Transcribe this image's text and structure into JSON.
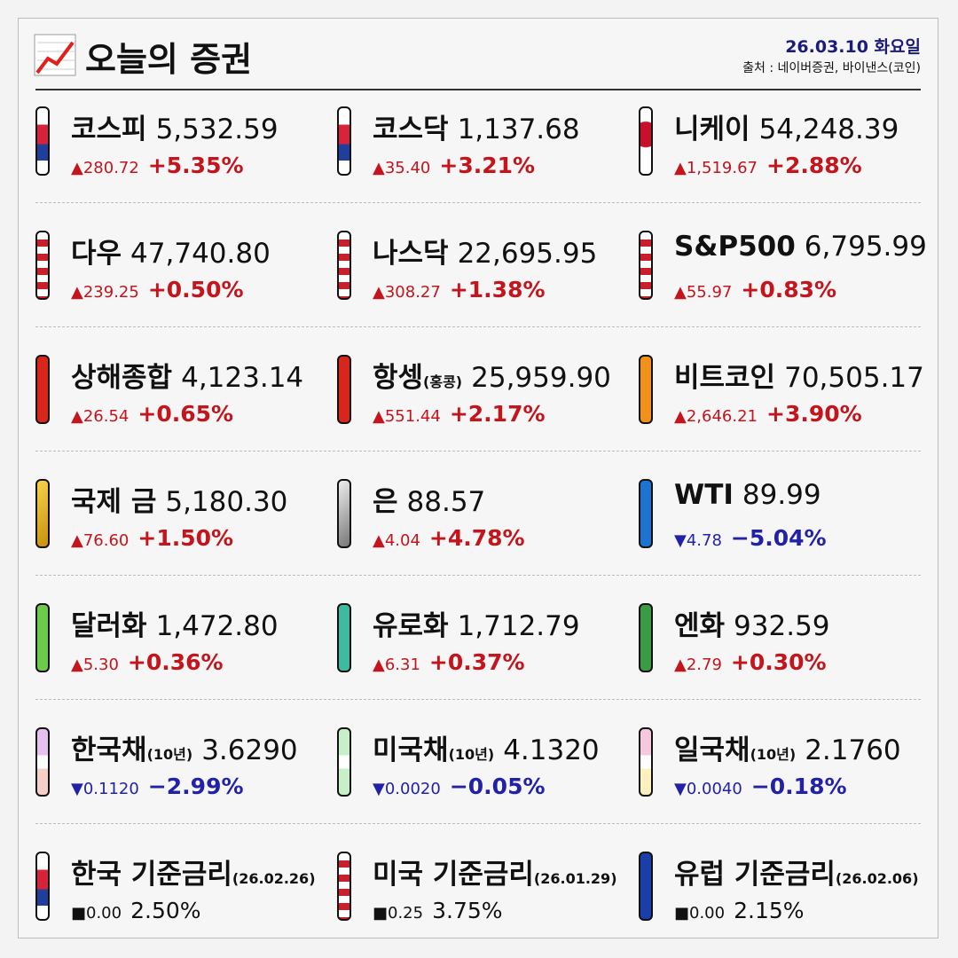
{
  "header": {
    "title": "오늘의 증권",
    "date": "26.03.10 화요일",
    "source": "출처 : 네이버증권, 바이낸스(코인)"
  },
  "items": [
    {
      "name": "코스피",
      "value": "5,532.59",
      "change": "▲280.72",
      "percent": "+5.35%"
    },
    {
      "name": "코스닥",
      "value": "1,137.68",
      "change": "▲35.40",
      "percent": "+3.21%"
    },
    {
      "name": "니케이",
      "value": "54,248.39",
      "change": "▲1,519.67",
      "percent": "+2.88%"
    },
    {
      "name": "다우",
      "value": "47,740.80",
      "change": "▲239.25",
      "percent": "+0.50%"
    },
    {
      "name": "나스닥",
      "value": "22,695.95",
      "change": "▲308.27",
      "percent": "+1.38%"
    },
    {
      "name": "S&P500",
      "value": "6,795.99",
      "change": "▲55.97",
      "percent": "+0.83%"
    },
    {
      "name": "상해종합",
      "value": "4,123.14",
      "change": "▲26.54",
      "percent": "+0.65%"
    },
    {
      "name": "항셍",
      "sub": "(홍콩)",
      "value": "25,959.90",
      "change": "▲551.44",
      "percent": "+2.17%"
    },
    {
      "name": "비트코인",
      "value": "70,505.17",
      "change": "▲2,646.21",
      "percent": "+3.90%"
    },
    {
      "name": "국제 금",
      "value": "5,180.30",
      "change": "▲76.60",
      "percent": "+1.50%"
    },
    {
      "name": "은",
      "value": "88.57",
      "change": "▲4.04",
      "percent": "+4.78%"
    },
    {
      "name": "WTI",
      "value": "89.99",
      "change": "▼4.78",
      "percent": "−5.04%"
    },
    {
      "name": "달러화",
      "value": "1,472.80",
      "change": "▲5.30",
      "percent": "+0.36%"
    },
    {
      "name": "유로화",
      "value": "1,712.79",
      "change": "▲6.31",
      "percent": "+0.37%"
    },
    {
      "name": "엔화",
      "value": "932.59",
      "change": "▲2.79",
      "percent": "+0.30%"
    },
    {
      "name": "한국채",
      "sub": "(10년)",
      "value": "3.6290",
      "change": "▼0.1120",
      "percent": "−2.99%"
    },
    {
      "name": "미국채",
      "sub": "(10년)",
      "value": "4.1320",
      "change": "▼0.0020",
      "percent": "−0.05%"
    },
    {
      "name": "일국채",
      "sub": "(10년)",
      "value": "2.1760",
      "change": "▼0.0040",
      "percent": "−0.18%"
    },
    {
      "name": "한국 기준금리",
      "sub": "(26.02.26)",
      "value": "",
      "change": "■0.00",
      "percent": "2.50%"
    },
    {
      "name": "미국 기준금리",
      "sub": "(26.01.29)",
      "value": "",
      "change": "■0.25",
      "percent": "3.75%"
    },
    {
      "name": "유럽 기준금리",
      "sub": "(26.02.06)",
      "value": "",
      "change": "■0.00",
      "percent": "2.15%"
    }
  ]
}
